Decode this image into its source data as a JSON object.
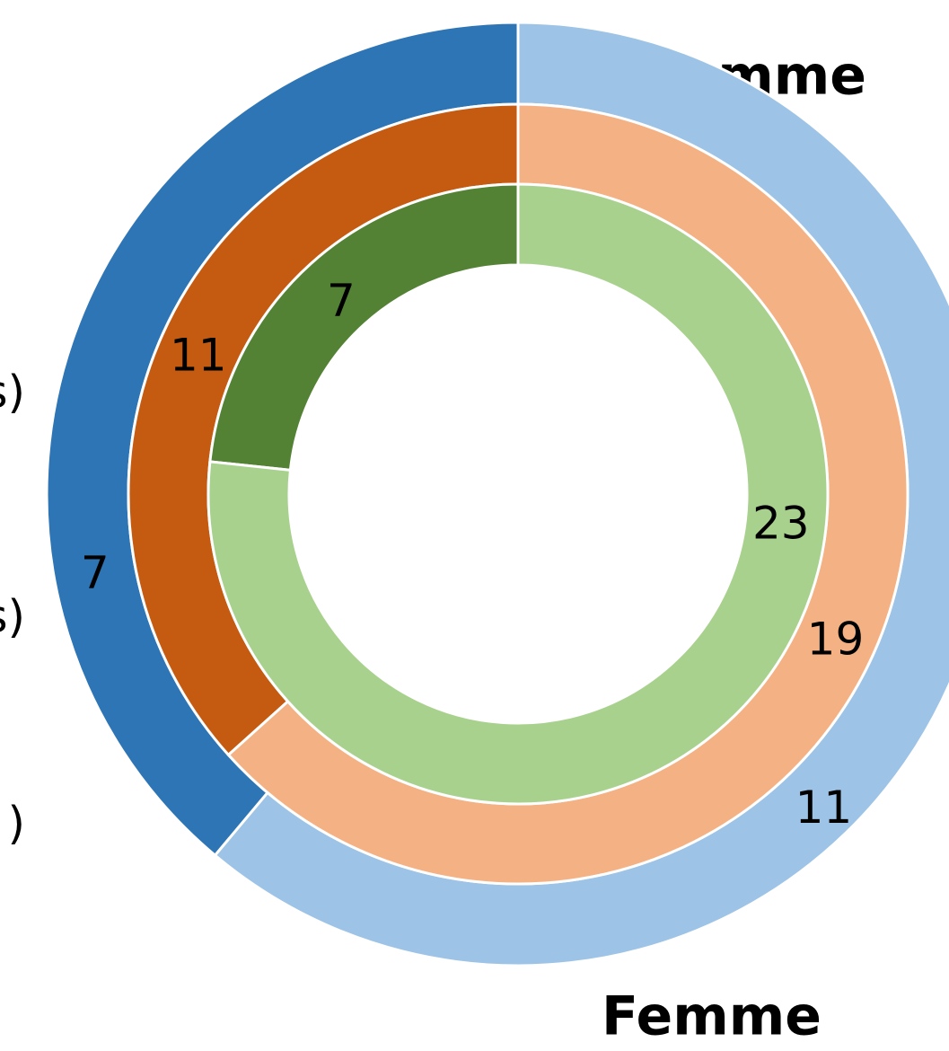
{
  "chart_data": {
    "type": "donut",
    "categories": [
      "Homme",
      "Femme"
    ],
    "legend": [
      "s)",
      "s)",
      ")"
    ],
    "rings": [
      {
        "values": [
          7,
          11
        ],
        "colors": [
          "#2e75b6",
          "#9dc3e6"
        ]
      },
      {
        "values": [
          11,
          19
        ],
        "colors": [
          "#c55a11",
          "#f4b183"
        ]
      },
      {
        "values": [
          7,
          23
        ],
        "colors": [
          "#548235",
          "#a9d18e"
        ]
      }
    ]
  }
}
